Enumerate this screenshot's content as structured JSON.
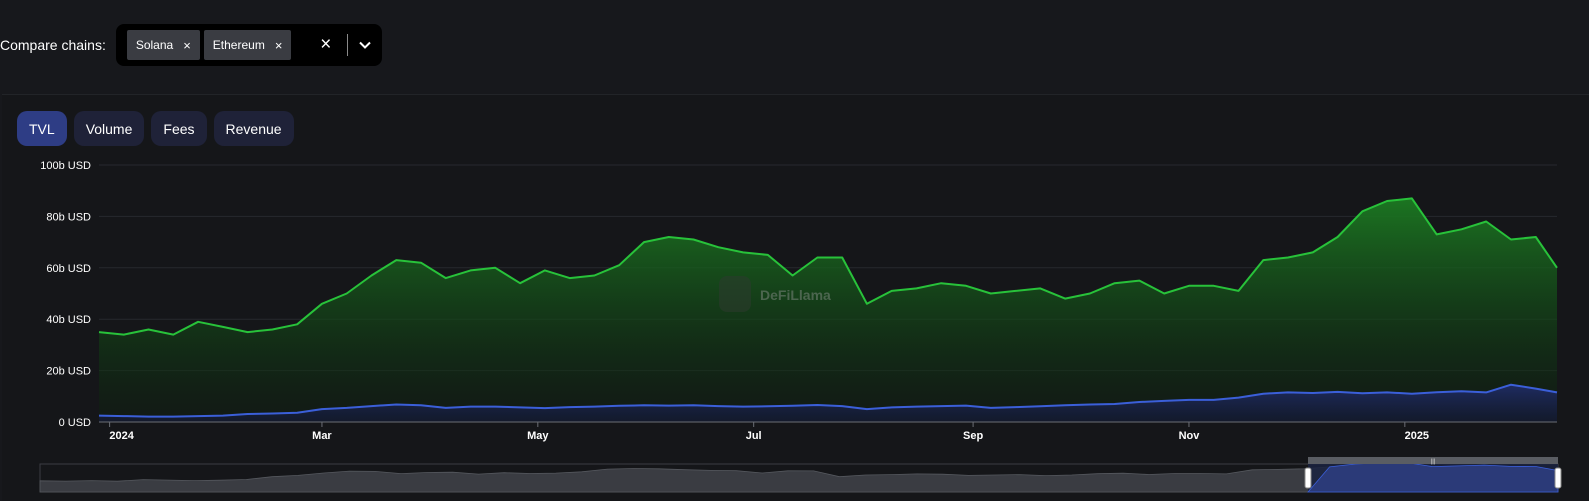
{
  "compare": {
    "label": "Compare chains:",
    "chips": [
      {
        "name": "Solana",
        "remove": "×"
      },
      {
        "name": "Ethereum",
        "remove": "×"
      }
    ],
    "clear": "×"
  },
  "tabs": [
    {
      "label": "TVL",
      "active": true
    },
    {
      "label": "Volume",
      "active": false
    },
    {
      "label": "Fees",
      "active": false
    },
    {
      "label": "Revenue",
      "active": false
    }
  ],
  "watermark": "DeFiLlama",
  "colors": {
    "ethereum": "#28c23a",
    "solana": "#3b5fd9",
    "active_tab": "#2e3d85"
  },
  "chart_data": {
    "type": "area",
    "ylim": [
      0,
      100
    ],
    "y_ticks": [
      "0 USD",
      "20b USD",
      "40b USD",
      "60b USD",
      "80b USD",
      "100b USD"
    ],
    "x_ticks": [
      {
        "label": "2024",
        "date": "2024-01-01"
      },
      {
        "label": "Mar",
        "date": "2024-03-01"
      },
      {
        "label": "May",
        "date": "2024-05-01"
      },
      {
        "label": "Jul",
        "date": "2024-07-01"
      },
      {
        "label": "Sep",
        "date": "2024-09-01"
      },
      {
        "label": "Nov",
        "date": "2024-11-01"
      },
      {
        "label": "2025",
        "date": "2025-01-01"
      }
    ],
    "x_range": [
      "2023-12-29",
      "2025-02-13"
    ],
    "x": [
      "2023-12-29",
      "2024-01-05",
      "2024-01-12",
      "2024-01-19",
      "2024-01-26",
      "2024-02-02",
      "2024-02-09",
      "2024-02-16",
      "2024-02-23",
      "2024-03-01",
      "2024-03-08",
      "2024-03-15",
      "2024-03-22",
      "2024-03-29",
      "2024-04-05",
      "2024-04-12",
      "2024-04-19",
      "2024-04-26",
      "2024-05-03",
      "2024-05-10",
      "2024-05-17",
      "2024-05-24",
      "2024-05-31",
      "2024-06-07",
      "2024-06-14",
      "2024-06-21",
      "2024-06-28",
      "2024-07-05",
      "2024-07-12",
      "2024-07-19",
      "2024-07-26",
      "2024-08-02",
      "2024-08-09",
      "2024-08-16",
      "2024-08-23",
      "2024-08-30",
      "2024-09-06",
      "2024-09-13",
      "2024-09-20",
      "2024-09-27",
      "2024-10-04",
      "2024-10-11",
      "2024-10-18",
      "2024-10-25",
      "2024-11-01",
      "2024-11-08",
      "2024-11-15",
      "2024-11-22",
      "2024-11-29",
      "2024-12-06",
      "2024-12-13",
      "2024-12-20",
      "2024-12-27",
      "2025-01-03",
      "2025-01-10",
      "2025-01-17",
      "2025-01-24",
      "2025-01-31",
      "2025-02-07",
      "2025-02-13"
    ],
    "series": [
      {
        "values": [
          35,
          34,
          36,
          34,
          39,
          37,
          35,
          36,
          38,
          46,
          50,
          57,
          63,
          62,
          56,
          59,
          60,
          54,
          59,
          56,
          57,
          61,
          70,
          72,
          71,
          68,
          66,
          65,
          57,
          64,
          64,
          46,
          51,
          52,
          54,
          53,
          50,
          51,
          52,
          48,
          50,
          54,
          55,
          50,
          53,
          53,
          51,
          63,
          64,
          66,
          72,
          82,
          86,
          87,
          73,
          75,
          78,
          71,
          72,
          60
        ],
        "area_color": "#1c7a22"
      },
      {
        "values": [
          2.5,
          2.3,
          2.1,
          2.1,
          2.3,
          2.5,
          3.1,
          3.3,
          3.6,
          5,
          5.5,
          6.2,
          6.8,
          6.5,
          5.5,
          6,
          6,
          5.7,
          5.4,
          5.8,
          6,
          6.3,
          6.5,
          6.4,
          6.5,
          6.2,
          6,
          6.1,
          6.3,
          6.6,
          6.2,
          5,
          5.7,
          6,
          6.2,
          6.4,
          5.5,
          5.8,
          6.1,
          6.5,
          6.8,
          7,
          7.8,
          8.2,
          8.6,
          8.6,
          9.5,
          11,
          11.5,
          11.3,
          11.7,
          11.2,
          11.5,
          11,
          11.6,
          12,
          11.5,
          14.5,
          13,
          11.5
        ],
        "area_color": "#1f2c66"
      }
    ]
  }
}
